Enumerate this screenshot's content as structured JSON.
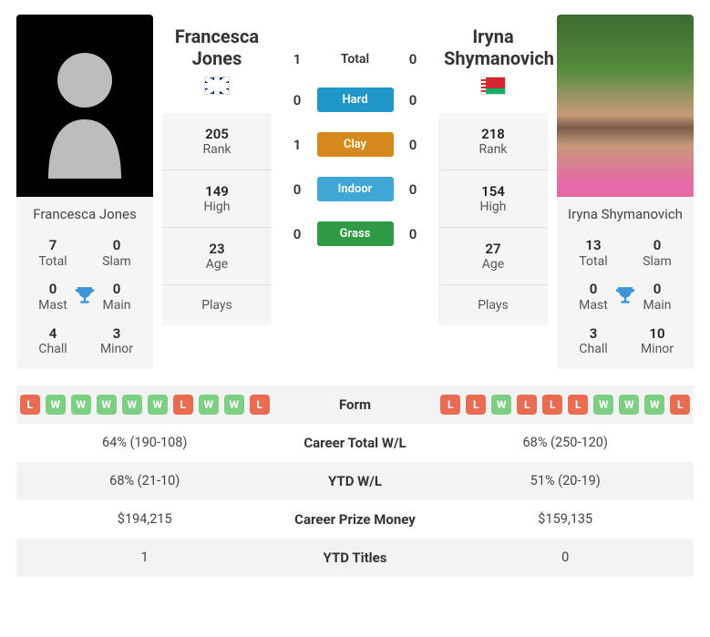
{
  "player_left": {
    "name": "Francesca Jones",
    "country_code": "GB",
    "titles": {
      "total": {
        "value": "7",
        "label": "Total"
      },
      "slam": {
        "value": "0",
        "label": "Slam"
      },
      "mast": {
        "value": "0",
        "label": "Mast"
      },
      "main": {
        "value": "0",
        "label": "Main"
      },
      "chall": {
        "value": "4",
        "label": "Chall"
      },
      "minor": {
        "value": "3",
        "label": "Minor"
      }
    },
    "stats": {
      "rank": {
        "value": "205",
        "label": "Rank"
      },
      "high": {
        "value": "149",
        "label": "High"
      },
      "age": {
        "value": "23",
        "label": "Age"
      },
      "plays": {
        "value": "",
        "label": "Plays"
      }
    }
  },
  "player_right": {
    "name": "Iryna Shymanovich",
    "country_code": "BY",
    "titles": {
      "total": {
        "value": "13",
        "label": "Total"
      },
      "slam": {
        "value": "0",
        "label": "Slam"
      },
      "mast": {
        "value": "0",
        "label": "Mast"
      },
      "main": {
        "value": "0",
        "label": "Main"
      },
      "chall": {
        "value": "3",
        "label": "Chall"
      },
      "minor": {
        "value": "10",
        "label": "Minor"
      }
    },
    "stats": {
      "rank": {
        "value": "218",
        "label": "Rank"
      },
      "high": {
        "value": "154",
        "label": "High"
      },
      "age": {
        "value": "27",
        "label": "Age"
      },
      "plays": {
        "value": "",
        "label": "Plays"
      }
    }
  },
  "h2h": {
    "rows": [
      {
        "left": "1",
        "label": "Total",
        "chip_class": "",
        "right": "0"
      },
      {
        "left": "0",
        "label": "Hard",
        "chip_class": "chip-hard",
        "right": "0"
      },
      {
        "left": "1",
        "label": "Clay",
        "chip_class": "chip-clay",
        "right": "0"
      },
      {
        "left": "0",
        "label": "Indoor",
        "chip_class": "chip-indoor",
        "right": "0"
      },
      {
        "left": "0",
        "label": "Grass",
        "chip_class": "chip-grass",
        "right": "0"
      }
    ]
  },
  "comparison": {
    "form_label": "Form",
    "form_left": [
      "L",
      "W",
      "W",
      "W",
      "W",
      "W",
      "L",
      "W",
      "W",
      "L"
    ],
    "form_right": [
      "L",
      "L",
      "W",
      "L",
      "L",
      "L",
      "W",
      "W",
      "W",
      "L"
    ],
    "rows": [
      {
        "left": "64% (190-108)",
        "label": "Career Total W/L",
        "right": "68% (250-120)"
      },
      {
        "left": "68% (21-10)",
        "label": "YTD W/L",
        "right": "51% (20-19)"
      },
      {
        "left": "$194,215",
        "label": "Career Prize Money",
        "right": "$159,135"
      },
      {
        "left": "1",
        "label": "YTD Titles",
        "right": "0"
      }
    ]
  },
  "colors": {
    "win_chip": "#7ccf83",
    "loss_chip": "#e96c52",
    "trophy": "#3b95d6"
  }
}
